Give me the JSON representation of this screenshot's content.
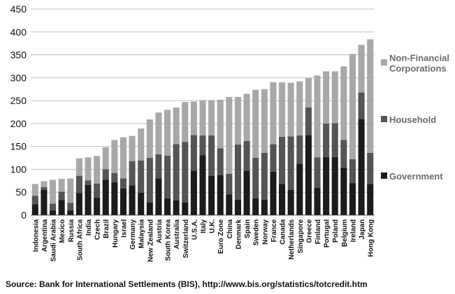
{
  "chart_data": {
    "type": "bar",
    "stacked": true,
    "title": "",
    "xlabel": "",
    "ylabel": "",
    "ylim": [
      0,
      450
    ],
    "yticks": [
      0,
      50,
      100,
      150,
      200,
      250,
      300,
      350,
      400,
      450
    ],
    "grid": true,
    "legend_position": "right",
    "categories": [
      "Indonesia",
      "Argentina",
      "Saudi Arabia",
      "Mexico",
      "Russia",
      "South Africa",
      "India",
      "Czech",
      "Brazil",
      "Hungary",
      "Israel",
      "Germany",
      "Malaysia",
      "New Zealand",
      "Austria",
      "South Korea",
      "Australia",
      "Switzerland",
      "U.S.A.",
      "Italy",
      "U.K.",
      "Euro Zone",
      "China",
      "Denmark",
      "Spain",
      "Sweden",
      "Norway",
      "France",
      "Canada",
      "Netherlands",
      "Singapore",
      "Greece",
      "Finland",
      "Portugal",
      "Poland",
      "Belgium",
      "Ireland",
      "Japan",
      "Hong Kong"
    ],
    "series": [
      {
        "name": "Government",
        "color": "#1c1c1c",
        "values": [
          24,
          55,
          10,
          33,
          10,
          48,
          66,
          38,
          77,
          72,
          58,
          65,
          49,
          28,
          80,
          37,
          32,
          28,
          97,
          131,
          86,
          88,
          45,
          34,
          97,
          37,
          34,
          95,
          68,
          55,
          112,
          175,
          60,
          127,
          127,
          104,
          70,
          210,
          68
        ]
      },
      {
        "name": "Household",
        "color": "#555555",
        "values": [
          18,
          6,
          15,
          18,
          17,
          38,
          10,
          31,
          23,
          20,
          22,
          53,
          70,
          97,
          53,
          93,
          123,
          132,
          78,
          43,
          88,
          58,
          45,
          120,
          65,
          88,
          102,
          60,
          103,
          117,
          62,
          60,
          66,
          73,
          74,
          60,
          52,
          58,
          68
        ]
      },
      {
        "name": "Non-Financial Corporations",
        "color": "#a8a8a8",
        "values": [
          26,
          13,
          52,
          28,
          53,
          38,
          50,
          60,
          48,
          72,
          90,
          55,
          70,
          84,
          91,
          100,
          80,
          87,
          73,
          77,
          77,
          106,
          168,
          104,
          103,
          149,
          139,
          135,
          119,
          117,
          118,
          64,
          179,
          114,
          113,
          161,
          230,
          104,
          248
        ]
      }
    ]
  },
  "source_text": "Source: Bank for International Settlements (BIS), http://www.bis.org/statistics/totcredit.htm"
}
